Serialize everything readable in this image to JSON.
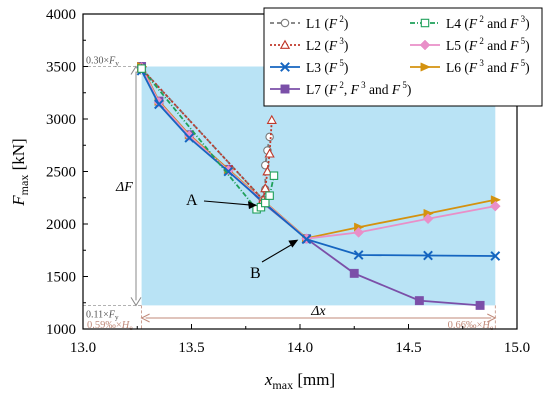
{
  "chart_data": {
    "type": "line",
    "xlabel_main": "x",
    "xlabel_sub": "max",
    "xlabel_unit": "[mm]",
    "ylabel_main": "F",
    "ylabel_sub": "max",
    "ylabel_unit": "[kN]",
    "xlim": [
      13.0,
      15.0
    ],
    "ylim": [
      1000,
      4000
    ],
    "xticks": [
      "13.0",
      "13.5",
      "14.0",
      "14.5",
      "15.0"
    ],
    "yticks": [
      "1000",
      "1500",
      "2000",
      "2500",
      "3000",
      "3500",
      "4000"
    ],
    "grid": false,
    "legend_position": "top-right",
    "series": [
      {
        "name": "L1",
        "label_base": "L1  (F",
        "label_suffix": ")",
        "powers": [
          "2"
        ],
        "connectors": [],
        "color": "#7a7a7a",
        "marker": "circle-open",
        "dash": "4,3",
        "x": [
          13.27,
          13.83,
          13.84,
          13.84,
          13.85,
          13.86
        ],
        "y": [
          3480,
          2230,
          2330,
          2560,
          2700,
          2830
        ]
      },
      {
        "name": "L2",
        "label_base": "L2  (F",
        "label_suffix": ")",
        "powers": [
          "3"
        ],
        "connectors": [],
        "color": "#c0392b",
        "marker": "triangle-open",
        "dash": "2,2",
        "x": [
          13.27,
          13.83,
          13.84,
          13.85,
          13.86,
          13.87
        ],
        "y": [
          3480,
          2230,
          2340,
          2500,
          2670,
          2990
        ]
      },
      {
        "name": "L3",
        "label_base": "L3  (F",
        "label_suffix": ")",
        "powers": [
          "5"
        ],
        "connectors": [],
        "color": "#1565c0",
        "marker": "x",
        "dash": "",
        "x": [
          13.27,
          13.35,
          13.49,
          13.67,
          13.83,
          14.03,
          14.27,
          14.59,
          14.9
        ],
        "y": [
          3460,
          3140,
          2820,
          2500,
          2210,
          1855,
          1705,
          1700,
          1695
        ]
      },
      {
        "name": "L4",
        "label_base": "L4  (F",
        "label_suffix": ")",
        "powers": [
          "2",
          "3"
        ],
        "connectors": [
          " and F"
        ],
        "color": "#1fa05a",
        "marker": "square-open",
        "dash": "5,2,1,2",
        "x": [
          13.27,
          13.8,
          13.82,
          13.84,
          13.86,
          13.88
        ],
        "y": [
          3480,
          2140,
          2160,
          2200,
          2270,
          2460
        ]
      },
      {
        "name": "L5",
        "label_base": "L5  (F",
        "label_suffix": ")",
        "powers": [
          "2",
          "5"
        ],
        "connectors": [
          " and F"
        ],
        "color": "#e98fc8",
        "marker": "diamond",
        "dash": "",
        "x": [
          13.27,
          13.35,
          13.49,
          13.67,
          13.83,
          14.03,
          14.27,
          14.59,
          14.9
        ],
        "y": [
          3490,
          3160,
          2840,
          2510,
          2220,
          1860,
          1920,
          2050,
          2170
        ]
      },
      {
        "name": "L6",
        "label_base": "L6  (F",
        "label_suffix": ")",
        "powers": [
          "3",
          "5"
        ],
        "connectors": [
          " and F"
        ],
        "color": "#d4920f",
        "marker": "triangle-right",
        "dash": "",
        "x": [
          13.27,
          13.35,
          13.49,
          13.67,
          13.83,
          14.03,
          14.27,
          14.59,
          14.9
        ],
        "y": [
          3500,
          3170,
          2850,
          2520,
          2225,
          1865,
          1970,
          2100,
          2230
        ]
      },
      {
        "name": "L7",
        "label_base": "L7  (F",
        "label_suffix": "",
        "powers": [
          "2",
          "3",
          "5"
        ],
        "connectors": [
          ", F",
          " and F"
        ],
        "color": "#7b4fa8",
        "marker": "square",
        "dash": "",
        "x": [
          13.27,
          13.35,
          13.49,
          13.67,
          13.83,
          14.03,
          14.25,
          14.55,
          14.83
        ],
        "y": [
          3500,
          3170,
          2850,
          2520,
          2200,
          1860,
          1530,
          1270,
          1225
        ]
      }
    ],
    "l7_label_tail": ")",
    "shaded_region": {
      "x": [
        13.27,
        14.9
      ],
      "y": [
        1225,
        3500
      ],
      "color": "#b9e3f5"
    },
    "annotations": {
      "A": {
        "label": "A",
        "target": [
          13.82,
          2180
        ]
      },
      "B": {
        "label": "B",
        "target": [
          14.02,
          1870
        ]
      },
      "delta_f": "ΔF",
      "delta_x": "Δx",
      "f_top": {
        "coef": "0.30×",
        "sym": "F",
        "sub": "y",
        "value": 3500
      },
      "f_bottom": {
        "coef": "0.11×",
        "sym": "F",
        "sub": "y",
        "value": 1225
      },
      "x_left": {
        "coef": "0.59‰×",
        "sym": "H",
        "sub": "e",
        "value": 13.27
      },
      "x_right": {
        "coef": "0.66‰×",
        "sym": "H",
        "sub": "e",
        "value": 14.9
      }
    }
  }
}
